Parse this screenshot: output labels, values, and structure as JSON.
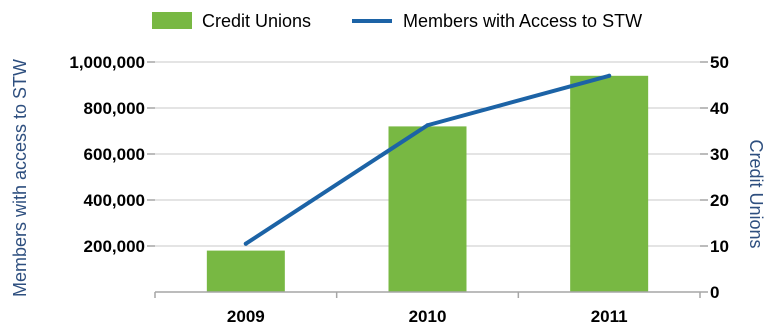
{
  "chart_data": {
    "type": "bar",
    "categories": [
      "2009",
      "2010",
      "2011"
    ],
    "series": [
      {
        "name": "Credit Unions",
        "type": "bar",
        "axis": "right",
        "values": [
          9,
          36,
          47
        ]
      },
      {
        "name": "Members with Access to STW",
        "type": "line",
        "axis": "left",
        "values": [
          210000,
          725000,
          940000
        ]
      }
    ],
    "ylabel": "Members with access to STW",
    "ylabel_right": "Credit Unions",
    "ylim": [
      0,
      1000000
    ],
    "ylim_right": [
      0,
      50
    ],
    "y_ticks": [
      "200,000",
      "400,000",
      "600,000",
      "800,000",
      "1,000,000"
    ],
    "y_tick_values": [
      200000,
      400000,
      600000,
      800000,
      1000000
    ],
    "y_right_ticks": [
      "0",
      "10",
      "20",
      "30",
      "40",
      "50"
    ],
    "y_right_tick_values": [
      0,
      10,
      20,
      30,
      40,
      50
    ],
    "grid": true,
    "legend_position": "top",
    "colors": {
      "bar": "#78b843",
      "line": "#1c63a6",
      "grid": "#c8c8c8",
      "axis_title": "#2e4f7f"
    }
  }
}
